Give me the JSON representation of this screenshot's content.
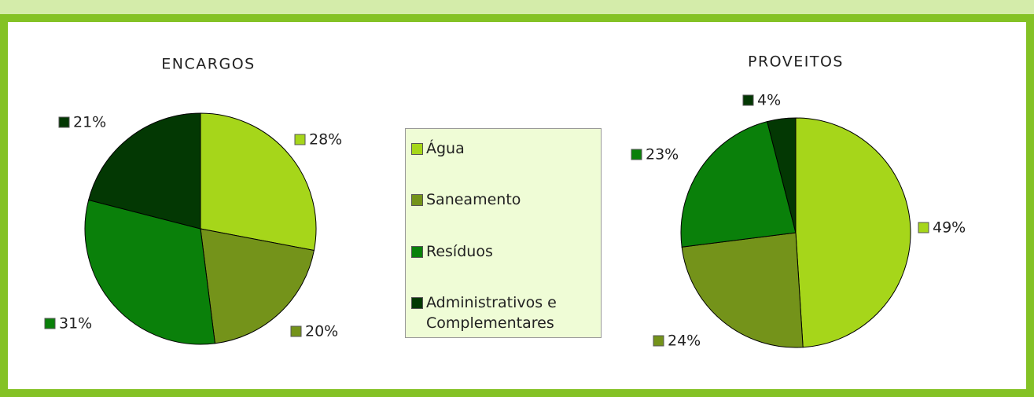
{
  "legend": {
    "names": [
      "Água",
      "Saneamento",
      "Resíduos",
      "Administrativos e Complementares"
    ],
    "colors": [
      "#a6d61a",
      "#74931a",
      "#0a800a",
      "#033803"
    ]
  },
  "chart_data": [
    {
      "type": "pie",
      "title": "ENCARGOS",
      "values": [
        28,
        20,
        31,
        21
      ],
      "value_labels": [
        "28%",
        "20%",
        "31%",
        "21%"
      ]
    },
    {
      "type": "pie",
      "title": "PROVEITOS",
      "values": [
        49,
        24,
        23,
        4
      ],
      "value_labels": [
        "49%",
        "24%",
        "23%",
        "4%"
      ]
    }
  ]
}
